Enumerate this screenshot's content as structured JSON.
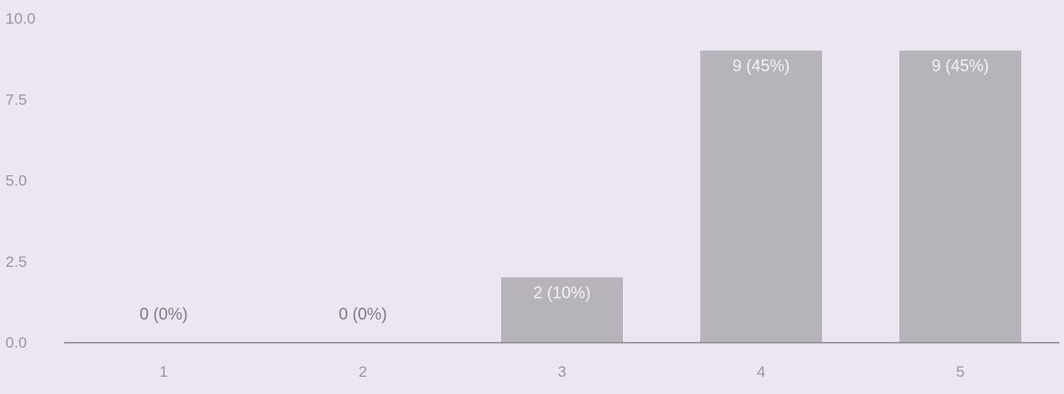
{
  "chart_data": {
    "type": "bar",
    "categories": [
      "1",
      "2",
      "3",
      "4",
      "5"
    ],
    "values": [
      0,
      0,
      2,
      9,
      9
    ],
    "data_labels": [
      "0 (0%)",
      "0 (0%)",
      "2 (10%)",
      "9 (45%)",
      "9 (45%)"
    ],
    "y_ticks": [
      "0.0",
      "2.5",
      "5.0",
      "7.5",
      "10.0"
    ],
    "ylim": [
      0,
      10
    ],
    "grid": false,
    "bar_color": "#b7b3bb",
    "axis_color": "#8a8890"
  }
}
